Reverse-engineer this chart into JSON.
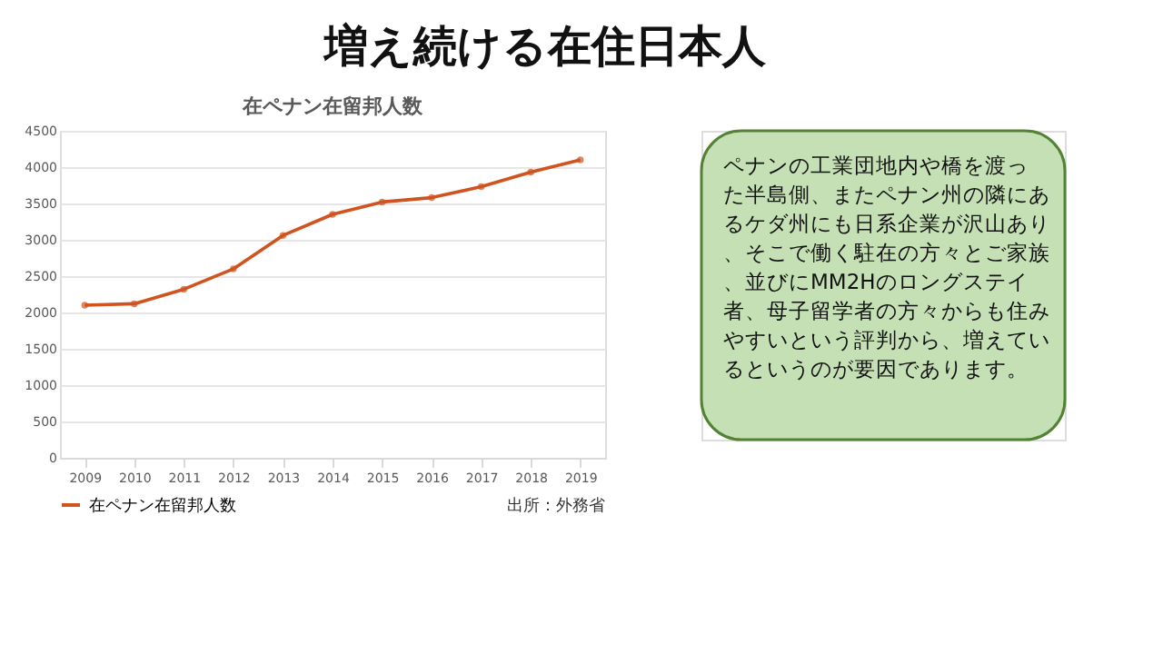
{
  "chart_data": {
    "type": "line",
    "title": "増え続ける在住日本人",
    "subtitle": "在ペナン在留邦人数",
    "categories": [
      "2009",
      "2010",
      "2011",
      "2012",
      "2013",
      "2014",
      "2015",
      "2016",
      "2017",
      "2018",
      "2019"
    ],
    "series": [
      {
        "name": "在ペナン在留邦人数",
        "color": "#d0541f",
        "values": [
          2100,
          2120,
          2320,
          2600,
          3060,
          3350,
          3520,
          3580,
          3730,
          3930,
          4100
        ]
      }
    ],
    "ylim": [
      0,
      4500
    ],
    "yticks": [
      0,
      500,
      1000,
      1500,
      2000,
      2500,
      3000,
      3500,
      4000,
      4500
    ],
    "grid": "y",
    "legend": "bottom left",
    "marker": "circle",
    "line_style": "solid",
    "annotations": [
      "出所：外務省",
      "　ペナンの工業団地内や橋を渡った半島側、またペナン州の隣にあるケダ州にも日系企業が沢山あり、そこで働く駐在の方々とご家族、並びにMM2Hのロングステイ者、母子留学者の方々からも住みやすいという評判から、増えているというのが要因であります。"
    ]
  }
}
